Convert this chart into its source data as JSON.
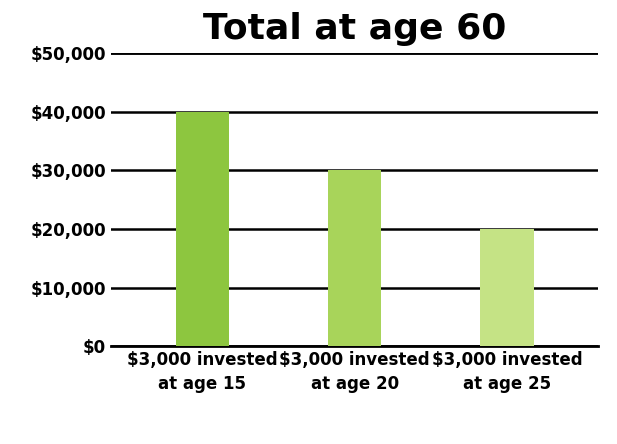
{
  "title": "Total at age 60",
  "categories": [
    "$3,000 invested\nat age 15",
    "$3,000 invested\nat age 20",
    "$3,000 invested\nat age 25"
  ],
  "values": [
    40000,
    30000,
    20000
  ],
  "bar_colors": [
    "#8DC63F",
    "#A8D45A",
    "#C5E385"
  ],
  "ylim": [
    0,
    50000
  ],
  "yticks": [
    0,
    10000,
    20000,
    30000,
    40000,
    50000
  ],
  "ytick_labels": [
    "$0",
    "$10,000",
    "$20,000",
    "$30,000",
    "$40,000",
    "$50,000"
  ],
  "title_fontsize": 26,
  "tick_fontsize": 12,
  "xlabel_fontsize": 12,
  "background_color": "#ffffff",
  "bar_width": 0.35,
  "grid_linewidth": 1.8,
  "bar_positions": [
    0,
    1,
    2
  ]
}
